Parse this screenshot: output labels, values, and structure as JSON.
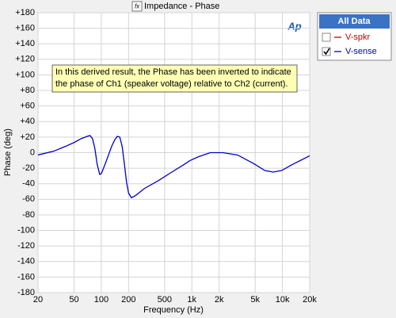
{
  "chart_data": {
    "type": "line",
    "title": "Impedance - Phase",
    "logo": "Ap",
    "xlabel": "Frequency (Hz)",
    "ylabel": "Phase (deg)",
    "xscale": "log",
    "grid": true,
    "xlim": [
      20,
      20000
    ],
    "xticks": [
      20,
      50,
      100,
      200,
      500,
      {
        "value": 1000,
        "label": "1k"
      },
      {
        "value": 2000,
        "label": "2k"
      },
      {
        "value": 5000,
        "label": "5k"
      },
      {
        "value": 10000,
        "label": "10k"
      },
      {
        "value": 20000,
        "label": "20k"
      }
    ],
    "ylim": [
      -180,
      180
    ],
    "yticks": [
      {
        "value": 180,
        "label": "+180"
      },
      {
        "value": 160,
        "label": "+160"
      },
      {
        "value": 140,
        "label": "+140"
      },
      {
        "value": 120,
        "label": "+120"
      },
      {
        "value": 100,
        "label": "+100"
      },
      {
        "value": 80,
        "label": "+80"
      },
      {
        "value": 60,
        "label": "+60"
      },
      {
        "value": 40,
        "label": "+40"
      },
      {
        "value": 20,
        "label": "+20"
      },
      0,
      -20,
      -40,
      -60,
      -80,
      -100,
      -120,
      -140,
      -160,
      -180
    ],
    "annotation": [
      "In this derived result, the Phase has been inverted to indicate",
      "the phase of Ch1 (speaker voltage) relative to Ch2 (current)."
    ],
    "legend_title": "All Data",
    "series": [
      {
        "name": "V-spkr",
        "color": "#cc0000",
        "visible": false
      },
      {
        "name": "V-sense",
        "color": "#0000cc",
        "visible": true,
        "x": [
          20,
          30,
          40,
          50,
          60,
          70,
          75,
          80,
          85,
          90,
          96,
          100,
          110,
          120,
          130,
          140,
          150,
          160,
          170,
          180,
          190,
          200,
          215,
          240,
          300,
          426,
          600,
          800,
          960,
          1200,
          1600,
          2200,
          3200,
          4800,
          6400,
          7900,
          9800,
          13000,
          20000
        ],
        "values": [
          -3,
          2,
          8,
          13,
          18,
          21,
          22,
          18,
          5,
          -15,
          -28,
          -27,
          -15,
          -3,
          8,
          16,
          21,
          20,
          8,
          -15,
          -38,
          -52,
          -58,
          -55,
          -46,
          -36,
          -25,
          -16,
          -10,
          -5,
          0,
          0,
          -3,
          -14,
          -23,
          -25,
          -23,
          -15,
          -4
        ]
      }
    ]
  }
}
